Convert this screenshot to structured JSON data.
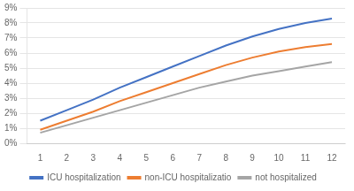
{
  "chart_data": {
    "type": "line",
    "x": [
      1,
      2,
      3,
      4,
      5,
      6,
      7,
      8,
      9,
      10,
      11,
      12
    ],
    "series": [
      {
        "name": "ICU hospitalization",
        "color": "#4472c4",
        "values": [
          0.015,
          0.022,
          0.029,
          0.037,
          0.044,
          0.051,
          0.058,
          0.065,
          0.071,
          0.076,
          0.08,
          0.083
        ]
      },
      {
        "name": "non-ICU hospitalizatio",
        "color": "#ed7d31",
        "values": [
          0.009,
          0.015,
          0.021,
          0.028,
          0.034,
          0.04,
          0.046,
          0.052,
          0.057,
          0.061,
          0.064,
          0.066
        ]
      },
      {
        "name": "not hospitalized",
        "color": "#a5a5a5",
        "values": [
          0.007,
          0.012,
          0.017,
          0.022,
          0.027,
          0.032,
          0.037,
          0.041,
          0.045,
          0.048,
          0.051,
          0.054
        ]
      }
    ],
    "xlim": [
      0.5,
      12.5
    ],
    "xticks": [
      1,
      2,
      3,
      4,
      5,
      6,
      7,
      8,
      9,
      10,
      11,
      12
    ],
    "ylim": [
      0.0,
      0.09
    ],
    "yticks": [
      {
        "value": 0.0,
        "label": "0%"
      },
      {
        "value": 0.01,
        "label": "1%"
      },
      {
        "value": 0.02,
        "label": "2%"
      },
      {
        "value": 0.03,
        "label": "3%"
      },
      {
        "value": 0.04,
        "label": "4%"
      },
      {
        "value": 0.05,
        "label": "5%"
      },
      {
        "value": 0.06,
        "label": "6%"
      },
      {
        "value": 0.07,
        "label": "7%"
      },
      {
        "value": 0.08,
        "label": "8%"
      },
      {
        "value": 0.09,
        "label": "9%"
      }
    ],
    "grid": true,
    "legend": "bottom"
  }
}
